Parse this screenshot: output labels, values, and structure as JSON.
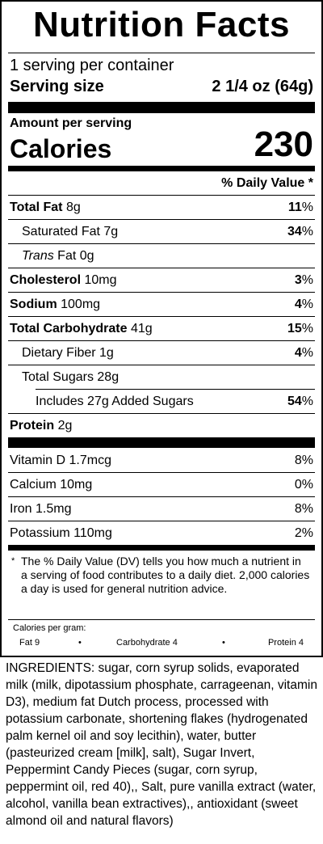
{
  "label": {
    "title": "Nutrition Facts",
    "servings_per_container": "1 serving per container",
    "serving_size_label": "Serving size",
    "serving_size_value": "2 1/4 oz (64g)",
    "amount_per_serving": "Amount per serving",
    "calories_label": "Calories",
    "calories_value": "230",
    "daily_value_header": "% Daily Value *",
    "nutrients": [
      {
        "name": "Total Fat",
        "amount": "8g",
        "dv": "11"
      },
      {
        "name": "Saturated Fat",
        "amount": "7g",
        "dv": "34"
      },
      {
        "name": "Trans",
        "name_rest": "Fat",
        "amount": "0g",
        "dv": ""
      },
      {
        "name": "Cholesterol",
        "amount": "10mg",
        "dv": "3"
      },
      {
        "name": "Sodium",
        "amount": "100mg",
        "dv": "4"
      },
      {
        "name": "Total Carbohydrate",
        "amount": "41g",
        "dv": "15"
      },
      {
        "name": "Dietary Fiber",
        "amount": "1g",
        "dv": "4"
      },
      {
        "name": "Total Sugars",
        "amount": "28g",
        "dv": ""
      },
      {
        "name": "Includes 27g Added Sugars",
        "amount": "",
        "dv": "54"
      },
      {
        "name": "Protein",
        "amount": "2g",
        "dv": ""
      }
    ],
    "percent_sign": "%",
    "vitamins": [
      {
        "name": "Vitamin D 1.7mcg",
        "dv": "8%"
      },
      {
        "name": "Calcium 10mg",
        "dv": "0%"
      },
      {
        "name": "Iron 1.5mg",
        "dv": "8%"
      },
      {
        "name": "Potassium 110mg",
        "dv": "2%"
      }
    ],
    "footnote_star": "*",
    "footnote": "The % Daily Value (DV) tells you how much a nutrient in a serving of food contributes to a daily diet. 2,000 calories a day is used for general nutrition advice.",
    "calories_per_gram_label": "Calories per gram:",
    "calories_per_gram": {
      "fat": "Fat 9",
      "bullet": "•",
      "carbohydrate": "Carbohydrate 4",
      "protein": "Protein 4"
    }
  },
  "ingredients": "INGREDIENTS: sugar, corn syrup solids, evaporated milk (milk, dipotassium phosphate, carrageenan, vitamin D3), medium fat Dutch process, processed with potassium carbonate, shortening flakes (hydrogenated palm kernel oil and soy lecithin), water, butter (pasteurized cream [milk], salt), Sugar Invert, Peppermint Candy Pieces (sugar, corn syrup, peppermint oil, red 40),, Salt, pure vanilla extract (water, alcohol, vanilla bean extractives),, antioxidant (sweet almond oil and natural flavors)"
}
